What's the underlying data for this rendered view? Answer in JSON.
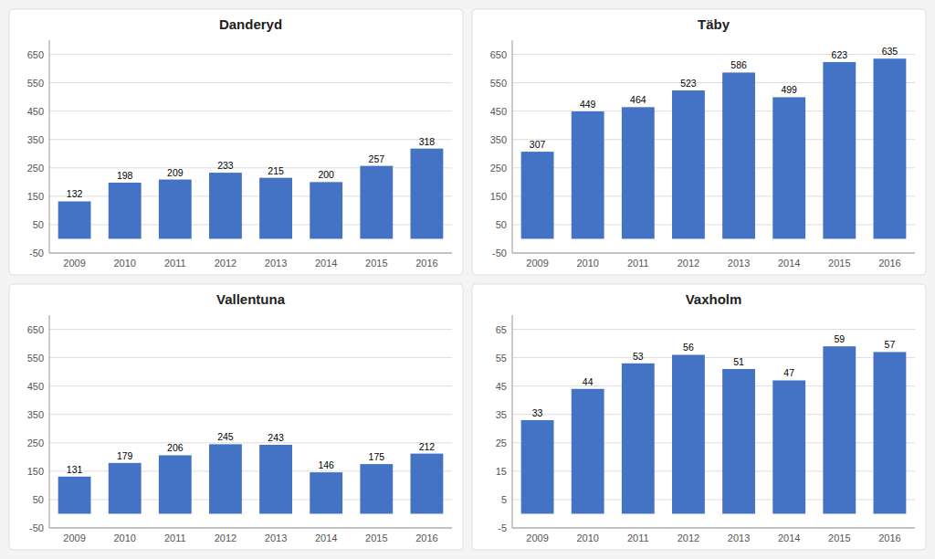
{
  "chart_data": [
    {
      "type": "bar",
      "title": "Danderyd",
      "categories": [
        "2009",
        "2010",
        "2011",
        "2012",
        "2013",
        "2014",
        "2015",
        "2016"
      ],
      "values": [
        132,
        198,
        209,
        233,
        215,
        200,
        257,
        318
      ],
      "color": "#4472C4",
      "ylim": [
        -50,
        700
      ],
      "yticks": [
        -50,
        50,
        150,
        250,
        350,
        450,
        550,
        650
      ],
      "grid": true,
      "data_labels": true
    },
    {
      "type": "bar",
      "title": "Täby",
      "categories": [
        "2009",
        "2010",
        "2011",
        "2012",
        "2013",
        "2014",
        "2015",
        "2016"
      ],
      "values": [
        307,
        449,
        464,
        523,
        586,
        499,
        623,
        635
      ],
      "color": "#4472C4",
      "ylim": [
        -50,
        700
      ],
      "yticks": [
        -50,
        50,
        150,
        250,
        350,
        450,
        550,
        650
      ],
      "grid": true,
      "data_labels": true
    },
    {
      "type": "bar",
      "title": "Vallentuna",
      "categories": [
        "2009",
        "2010",
        "2011",
        "2012",
        "2013",
        "2014",
        "2015",
        "2016"
      ],
      "values": [
        131,
        179,
        206,
        245,
        243,
        146,
        175,
        212
      ],
      "color": "#4472C4",
      "ylim": [
        -50,
        700
      ],
      "yticks": [
        -50,
        50,
        150,
        250,
        350,
        450,
        550,
        650
      ],
      "grid": true,
      "data_labels": true
    },
    {
      "type": "bar",
      "title": "Vaxholm",
      "categories": [
        "2009",
        "2010",
        "2011",
        "2012",
        "2013",
        "2014",
        "2015",
        "2016"
      ],
      "values": [
        33,
        44,
        53,
        56,
        51,
        47,
        59,
        57
      ],
      "color": "#4472C4",
      "ylim": [
        -5,
        70
      ],
      "yticks": [
        -5,
        5,
        15,
        25,
        35,
        45,
        55,
        65
      ],
      "grid": true,
      "data_labels": true
    }
  ]
}
